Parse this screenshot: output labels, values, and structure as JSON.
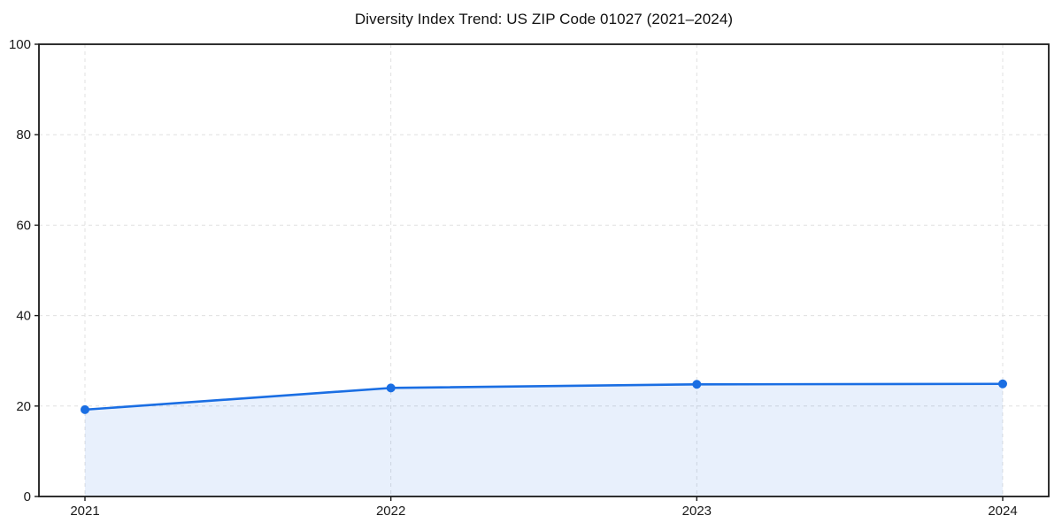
{
  "chart_data": {
    "type": "area",
    "title": "Diversity Index Trend: US ZIP Code 01027 (2021–2024)",
    "x": [
      "2021",
      "2022",
      "2023",
      "2024"
    ],
    "values": [
      19.2,
      24.0,
      24.8,
      24.9
    ],
    "xlabel": "",
    "ylabel": "",
    "ylim": [
      0,
      100
    ],
    "yticks": [
      0,
      20,
      40,
      60,
      80,
      100
    ],
    "grid": true,
    "grid_style": "dashed",
    "legend": false,
    "colors": {
      "line": "#1a6ee3",
      "marker": "#1a6ee3",
      "fill": "rgba(26,110,227,0.10)",
      "grid": "#e0e0e0",
      "axis": "#1a1a1a",
      "text": "#1a1a1a",
      "background": "#ffffff"
    }
  }
}
